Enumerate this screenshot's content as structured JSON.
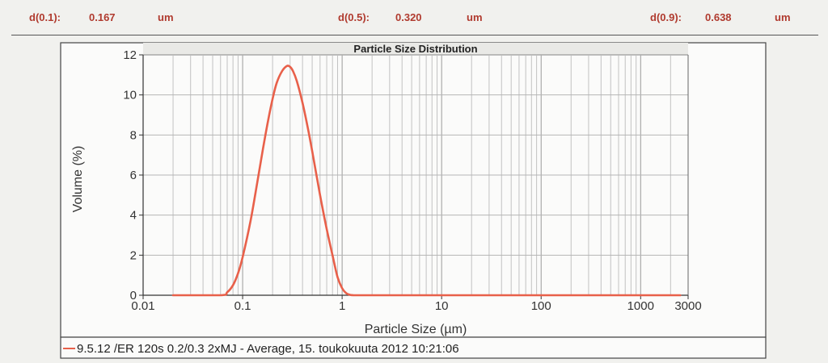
{
  "header": {
    "d10": {
      "label": "d(0.1):",
      "value": "0.167",
      "unit": "um"
    },
    "d50": {
      "label": "d(0.5):",
      "value": "0.320",
      "unit": "um"
    },
    "d90": {
      "label": "d(0.9):",
      "value": "0.638",
      "unit": "um"
    }
  },
  "colors": {
    "header_text": "#b03a2e",
    "series_line": "#e8604a"
  },
  "chart_data": {
    "type": "line",
    "title": "Particle Size Distribution",
    "xlabel": "Particle Size (µm)",
    "ylabel": "Volume (%)",
    "x_scale": "log",
    "xlim": [
      0.01,
      3000
    ],
    "ylim": [
      0,
      12
    ],
    "x_ticks": [
      0.01,
      0.1,
      1,
      10,
      100,
      1000,
      3000
    ],
    "x_tick_labels": [
      "0.01",
      "0.1",
      "1",
      "10",
      "100",
      "1000",
      "3000"
    ],
    "y_ticks": [
      0,
      2,
      4,
      6,
      8,
      10,
      12
    ],
    "y_tick_labels": [
      "0",
      "2",
      "4",
      "6",
      "8",
      "10",
      "12"
    ],
    "grid": true,
    "legend_position": "bottom",
    "series": [
      {
        "name": "9.5.12 /ER 120s 0.2/0.3  2xMJ - Average, 15. toukokuuta 2012 10:21:06",
        "x": [
          0.02,
          0.06,
          0.07,
          0.08,
          0.09,
          0.1,
          0.12,
          0.14,
          0.16,
          0.18,
          0.2,
          0.22,
          0.25,
          0.28,
          0.3,
          0.32,
          0.35,
          0.4,
          0.45,
          0.5,
          0.6,
          0.7,
          0.8,
          0.9,
          1.0,
          1.1,
          1.2,
          1.3,
          1.5,
          2,
          10,
          100,
          1000,
          2500
        ],
        "y": [
          0,
          0,
          0.15,
          0.5,
          1.1,
          1.9,
          3.7,
          5.6,
          7.3,
          8.7,
          9.8,
          10.6,
          11.2,
          11.45,
          11.4,
          11.2,
          10.7,
          9.6,
          8.4,
          7.2,
          5.0,
          3.3,
          2.0,
          0.9,
          0.35,
          0.1,
          0.02,
          0,
          0,
          0,
          0,
          0,
          0,
          0
        ]
      }
    ]
  }
}
